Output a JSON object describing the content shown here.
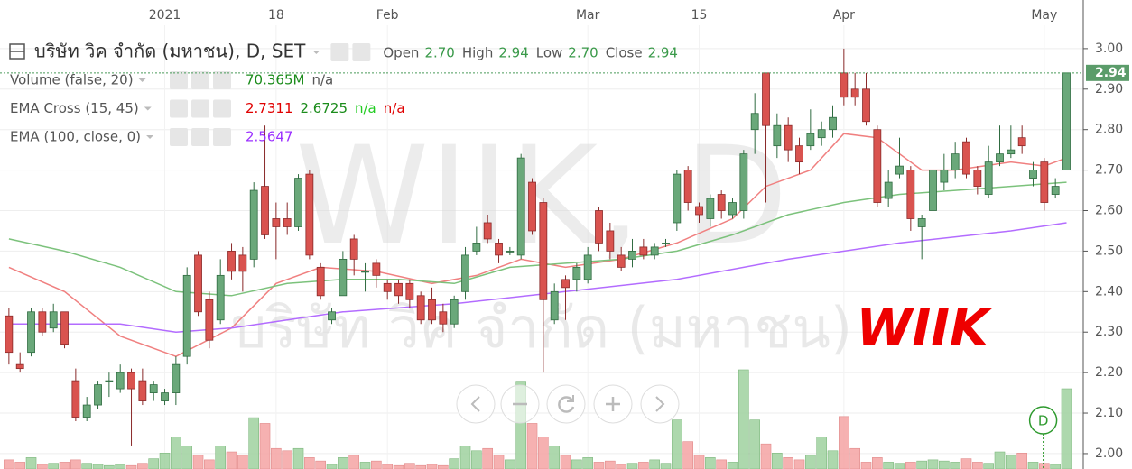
{
  "chart_data": {
    "type": "candlestick",
    "title": "บริษัท วิค จำกัด (มหาชน), D, SET",
    "watermark": "WIIK, D",
    "watermark_sub": "บริษัท วิค จำกัด (มหาชน)",
    "logo_text": "WIIK",
    "event_marker": "D",
    "ohlc_header": [
      {
        "label": "Open",
        "value": "2.70"
      },
      {
        "label": "High",
        "value": "2.94"
      },
      {
        "label": "Low",
        "value": "2.70"
      },
      {
        "label": "Close",
        "value": "2.94"
      }
    ],
    "indicators": [
      {
        "name": "Volume (false, 20)",
        "values": [
          {
            "text": "70.365M",
            "color": "#1b8c1b"
          },
          {
            "text": "n/a",
            "color": "#555555"
          }
        ]
      },
      {
        "name": "EMA Cross (15, 45)",
        "values": [
          {
            "text": "2.7311",
            "color": "#e00000"
          },
          {
            "text": "2.6725",
            "color": "#1b8c1b"
          },
          {
            "text": "n/a",
            "color": "#22cc22"
          },
          {
            "text": "n/a",
            "color": "#e00000"
          }
        ]
      },
      {
        "name": "EMA (100, close, 0)",
        "values": [
          {
            "text": "2.5647",
            "color": "#9b30ff"
          }
        ]
      }
    ],
    "up_color": "#6aa87a",
    "up_border": "#2f6b40",
    "down_color": "#d9534f",
    "down_border": "#8a2a2a",
    "volume_up_color": "#9fd19f",
    "volume_down_color": "#f4a3a3",
    "open": [
      2.34,
      2.22,
      2.25,
      2.35,
      2.31,
      2.35,
      2.18,
      2.09,
      2.12,
      2.18,
      2.16,
      2.2,
      2.18,
      2.15,
      2.13,
      2.15,
      2.24,
      2.49,
      2.38,
      2.33,
      2.5,
      2.49,
      2.48,
      2.66,
      2.58,
      2.58,
      2.56,
      2.69,
      2.46,
      2.33,
      2.39,
      2.53,
      2.45,
      2.47,
      2.42,
      2.42,
      2.42,
      2.39,
      2.38,
      2.35,
      2.32,
      2.4,
      2.5,
      2.57,
      2.52,
      2.5,
      2.49,
      2.67,
      2.62,
      2.33,
      2.43,
      2.43,
      2.43,
      2.6,
      2.55,
      2.49,
      2.48,
      2.51,
      2.49,
      2.52,
      2.57,
      2.7,
      2.61,
      2.58,
      2.64,
      2.59,
      2.6,
      2.8,
      2.94,
      2.76,
      2.81,
      2.76,
      2.76,
      2.78,
      2.8,
      2.94,
      2.9,
      2.9,
      2.8,
      2.63,
      2.69,
      2.7,
      2.56,
      2.6,
      2.67,
      2.7,
      2.77,
      2.7,
      2.64,
      2.72,
      2.74,
      2.78,
      2.68,
      2.72,
      2.64,
      2.7
    ],
    "high": [
      2.36,
      2.25,
      2.36,
      2.36,
      2.37,
      2.35,
      2.21,
      2.14,
      2.18,
      2.2,
      2.22,
      2.21,
      2.21,
      2.18,
      2.16,
      2.24,
      2.46,
      2.5,
      2.4,
      2.48,
      2.52,
      2.51,
      2.67,
      2.81,
      2.62,
      2.62,
      2.69,
      2.7,
      2.47,
      2.36,
      2.5,
      2.54,
      2.47,
      2.48,
      2.43,
      2.43,
      2.43,
      2.4,
      2.41,
      2.37,
      2.39,
      2.51,
      2.56,
      2.59,
      2.53,
      2.51,
      2.74,
      2.68,
      2.63,
      2.42,
      2.44,
      2.47,
      2.51,
      2.61,
      2.57,
      2.51,
      2.53,
      2.53,
      2.52,
      2.53,
      2.7,
      2.71,
      2.62,
      2.64,
      2.65,
      2.63,
      2.75,
      2.89,
      2.94,
      2.84,
      2.83,
      2.78,
      2.85,
      2.82,
      2.86,
      3.0,
      2.94,
      2.94,
      2.81,
      2.7,
      2.78,
      2.71,
      2.59,
      2.71,
      2.74,
      2.77,
      2.78,
      2.71,
      2.76,
      2.81,
      2.81,
      2.81,
      2.72,
      2.73,
      2.68,
      2.94
    ],
    "low": [
      2.22,
      2.2,
      2.24,
      2.29,
      2.3,
      2.26,
      2.08,
      2.08,
      2.11,
      2.14,
      2.15,
      2.02,
      2.12,
      2.13,
      2.12,
      2.12,
      2.22,
      2.34,
      2.26,
      2.32,
      2.43,
      2.4,
      2.46,
      2.53,
      2.48,
      2.54,
      2.55,
      2.48,
      2.38,
      2.32,
      2.39,
      2.44,
      2.4,
      2.41,
      2.38,
      2.37,
      2.36,
      2.32,
      2.32,
      2.3,
      2.31,
      2.38,
      2.49,
      2.52,
      2.47,
      2.49,
      2.48,
      2.54,
      2.2,
      2.32,
      2.33,
      2.4,
      2.42,
      2.5,
      2.48,
      2.45,
      2.46,
      2.48,
      2.48,
      2.51,
      2.55,
      2.6,
      2.57,
      2.56,
      2.58,
      2.58,
      2.58,
      2.74,
      2.62,
      2.73,
      2.72,
      2.69,
      2.75,
      2.76,
      2.78,
      2.86,
      2.86,
      2.81,
      2.61,
      2.61,
      2.68,
      2.55,
      2.48,
      2.59,
      2.65,
      2.68,
      2.68,
      2.64,
      2.63,
      2.71,
      2.73,
      2.74,
      2.66,
      2.6,
      2.63,
      2.7
    ],
    "close": [
      2.25,
      2.21,
      2.35,
      2.3,
      2.35,
      2.27,
      2.09,
      2.12,
      2.17,
      2.18,
      2.2,
      2.16,
      2.13,
      2.17,
      2.15,
      2.22,
      2.44,
      2.35,
      2.28,
      2.44,
      2.45,
      2.45,
      2.65,
      2.54,
      2.56,
      2.56,
      2.68,
      2.49,
      2.39,
      2.35,
      2.48,
      2.48,
      2.45,
      2.44,
      2.4,
      2.39,
      2.38,
      2.33,
      2.33,
      2.32,
      2.38,
      2.49,
      2.52,
      2.53,
      2.49,
      2.5,
      2.73,
      2.55,
      2.38,
      2.4,
      2.41,
      2.46,
      2.49,
      2.52,
      2.5,
      2.46,
      2.5,
      2.49,
      2.51,
      2.52,
      2.69,
      2.62,
      2.59,
      2.63,
      2.6,
      2.62,
      2.74,
      2.84,
      2.81,
      2.81,
      2.75,
      2.72,
      2.79,
      2.8,
      2.83,
      2.88,
      2.88,
      2.82,
      2.62,
      2.67,
      2.71,
      2.58,
      2.58,
      2.7,
      2.7,
      2.74,
      2.69,
      2.66,
      2.72,
      2.74,
      2.75,
      2.76,
      2.7,
      2.62,
      2.66,
      2.94
    ],
    "volume": [
      8,
      6,
      10,
      4,
      5,
      6,
      8,
      5,
      4,
      3,
      4,
      3,
      5,
      9,
      14,
      28,
      20,
      12,
      8,
      20,
      15,
      12,
      45,
      40,
      18,
      16,
      18,
      10,
      7,
      4,
      10,
      12,
      6,
      7,
      4,
      3,
      5,
      3,
      4,
      3,
      9,
      20,
      16,
      18,
      12,
      8,
      77,
      40,
      28,
      20,
      12,
      8,
      10,
      6,
      7,
      4,
      5,
      6,
      8,
      5,
      43,
      24,
      12,
      10,
      8,
      6,
      87,
      43,
      22,
      14,
      10,
      8,
      12,
      28,
      16,
      46,
      18,
      6,
      10,
      6,
      5,
      6,
      7,
      8,
      7,
      6,
      9,
      6,
      5,
      15,
      12,
      14,
      6,
      5,
      4,
      70.365
    ],
    "lines": [
      {
        "name": "EMA 15",
        "color": "#f08080",
        "x": [
          0,
          5,
          10,
          15,
          20,
          24,
          28,
          33,
          38,
          42,
          46,
          50,
          55,
          60,
          65,
          68,
          72,
          75,
          78,
          82,
          85,
          90,
          93,
          95
        ],
        "values": [
          2.46,
          2.4,
          2.29,
          2.24,
          2.31,
          2.42,
          2.46,
          2.45,
          2.42,
          2.44,
          2.48,
          2.46,
          2.48,
          2.52,
          2.58,
          2.66,
          2.7,
          2.79,
          2.78,
          2.7,
          2.7,
          2.72,
          2.71,
          2.73
        ]
      },
      {
        "name": "EMA 45",
        "color": "#7cc27c",
        "x": [
          0,
          5,
          10,
          15,
          20,
          25,
          30,
          35,
          40,
          45,
          50,
          55,
          60,
          65,
          70,
          75,
          80,
          85,
          90,
          95
        ],
        "values": [
          2.53,
          2.5,
          2.46,
          2.4,
          2.39,
          2.42,
          2.43,
          2.43,
          2.42,
          2.46,
          2.47,
          2.48,
          2.5,
          2.54,
          2.59,
          2.62,
          2.64,
          2.65,
          2.66,
          2.67
        ]
      },
      {
        "name": "EMA 100",
        "color": "#b36cff",
        "x": [
          0,
          10,
          15,
          20,
          25,
          30,
          40,
          50,
          60,
          70,
          80,
          90,
          95
        ],
        "values": [
          2.32,
          2.32,
          2.3,
          2.31,
          2.33,
          2.35,
          2.37,
          2.4,
          2.43,
          2.48,
          2.52,
          2.55,
          2.57
        ]
      }
    ],
    "last_price": {
      "value": 2.94,
      "label": "2.94"
    },
    "xlim": [
      -0.8,
      96.5
    ],
    "ylim": [
      1.962,
      3.12
    ],
    "yticks": [
      {
        "value": 2.0,
        "label": "2.00"
      },
      {
        "value": 2.1,
        "label": "2.10"
      },
      {
        "value": 2.2,
        "label": "2.20"
      },
      {
        "value": 2.3,
        "label": "2.30"
      },
      {
        "value": 2.4,
        "label": "2.40"
      },
      {
        "value": 2.5,
        "label": "2.50"
      },
      {
        "value": 2.6,
        "label": "2.60"
      },
      {
        "value": 2.7,
        "label": "2.70"
      },
      {
        "value": 2.8,
        "label": "2.80"
      },
      {
        "value": 2.9,
        "label": "2.90"
      },
      {
        "value": 3.0,
        "label": "3.00"
      }
    ],
    "xticks": [
      {
        "value": 14,
        "label": "2021"
      },
      {
        "value": 24,
        "label": "18"
      },
      {
        "value": 34,
        "label": "Feb"
      },
      {
        "value": 52,
        "label": "Mar"
      },
      {
        "value": 62,
        "label": "15"
      },
      {
        "value": 75,
        "label": "Apr"
      },
      {
        "value": 93,
        "label": "May"
      }
    ],
    "grid": true
  }
}
